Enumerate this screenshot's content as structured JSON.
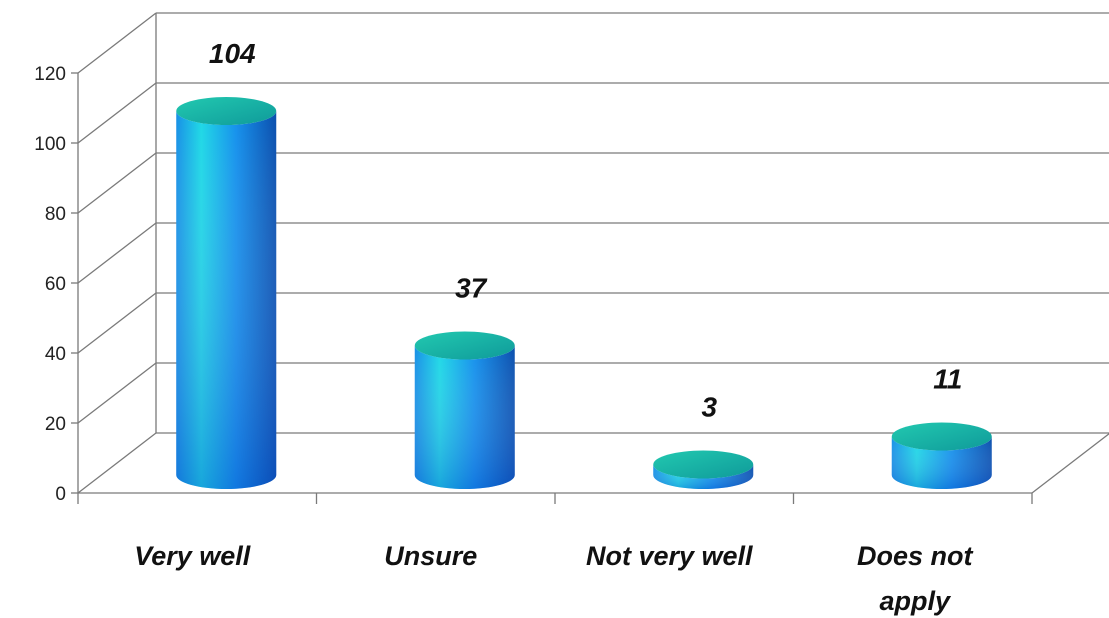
{
  "chart_data": {
    "type": "bar",
    "style": "3d-cylinder",
    "categories": [
      "Very well",
      "Unsure",
      "Not very well",
      "Does not apply"
    ],
    "values": [
      104,
      37,
      3,
      11
    ],
    "data_labels": [
      "104",
      "37",
      "3",
      "11"
    ],
    "ylim": [
      0,
      120
    ],
    "yticks": [
      "0",
      "20",
      "40",
      "60",
      "80",
      "100",
      "120"
    ],
    "grid": true,
    "legend": "none",
    "colors": {
      "bar_top": "#19b8a4",
      "bar_light": "#1ed8e6",
      "bar_mid": "#1590ea",
      "bar_dark": "#0a55b6",
      "grid": "#7a7a7a"
    }
  }
}
